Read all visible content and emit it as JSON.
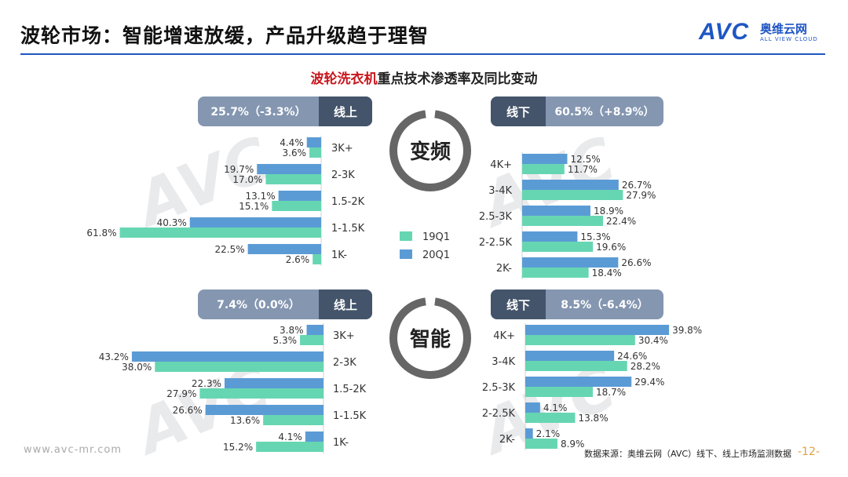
{
  "page": {
    "title": "波轮市场：智能增速放缓，产品升级趋于理智",
    "subtitle_highlight": "波轮洗衣机",
    "subtitle_rest": "重点技术渗透率及同比变动",
    "footer_url": "www.avc-mr.com",
    "footer_source": "数据来源：奥维云网（AVC）线下、线上市场监测数据",
    "page_number": "-12-"
  },
  "logo": {
    "mark": "AVC",
    "cn": "奥维云网",
    "en": "ALL VIEW CLOUD"
  },
  "watermark": "AVC",
  "legend": [
    {
      "name": "19Q1",
      "color": "#66d6b2"
    },
    {
      "name": "20Q1",
      "color": "#5b9bd5"
    }
  ],
  "colors": {
    "series_19": "#66d6b2",
    "series_20": "#5b9bd5",
    "label_pill": "#8496b0",
    "channel_pill": "#44546a",
    "donut": "#666666"
  },
  "sections": {
    "tech_top": "变频",
    "tech_bottom": "智能"
  },
  "chart_data": [
    {
      "type": "bar",
      "title": "变频 线上",
      "channel": "线上",
      "summary": "25.7%（-3.3%）",
      "categories": [
        "3K+",
        "2-3K",
        "1.5-2K",
        "1-1.5K",
        "1K-"
      ],
      "series": [
        {
          "name": "20Q1",
          "values": [
            4.4,
            19.7,
            13.1,
            40.3,
            22.5
          ],
          "labels": [
            "4.4%",
            "19.7%",
            "13.1%",
            "40.3%",
            "22.5%"
          ]
        },
        {
          "name": "19Q1",
          "values": [
            3.6,
            17.0,
            15.1,
            61.8,
            2.6
          ],
          "labels": [
            "3.6%",
            "17.0%",
            "15.1%",
            "61.8%",
            "2.6%"
          ]
        }
      ]
    },
    {
      "type": "bar",
      "title": "变频 线下",
      "channel": "线下",
      "summary": "60.5%（+8.9%）",
      "categories": [
        "4K+",
        "3-4K",
        "2.5-3K",
        "2-2.5K",
        "2K-"
      ],
      "series": [
        {
          "name": "20Q1",
          "values": [
            12.5,
            26.7,
            18.9,
            15.3,
            26.6
          ],
          "labels": [
            "12.5%",
            "26.7%",
            "18.9%",
            "15.3%",
            "26.6%"
          ]
        },
        {
          "name": "19Q1",
          "values": [
            11.7,
            27.9,
            22.4,
            19.6,
            18.4
          ],
          "labels": [
            "11.7%",
            "27.9%",
            "22.4%",
            "19.6%",
            "18.4%"
          ]
        }
      ]
    },
    {
      "type": "bar",
      "title": "智能 线上",
      "channel": "线上",
      "summary": "7.4%（0.0%）",
      "categories": [
        "3K+",
        "2-3K",
        "1.5-2K",
        "1-1.5K",
        "1K-"
      ],
      "series": [
        {
          "name": "20Q1",
          "values": [
            3.8,
            43.2,
            22.3,
            26.6,
            4.1
          ],
          "labels": [
            "3.8%",
            "43.2%",
            "22.3%",
            "26.6%",
            "4.1%"
          ]
        },
        {
          "name": "19Q1",
          "values": [
            5.3,
            38.0,
            27.9,
            13.6,
            15.2
          ],
          "labels": [
            "5.3%",
            "38.0%",
            "27.9%",
            "13.6%",
            "15.2%"
          ]
        }
      ]
    },
    {
      "type": "bar",
      "title": "智能 线下",
      "channel": "线下",
      "summary": "8.5%（-6.4%）",
      "categories": [
        "4K+",
        "3-4K",
        "2.5-3K",
        "2-2.5K",
        "2K-"
      ],
      "series": [
        {
          "name": "20Q1",
          "values": [
            39.8,
            24.6,
            29.4,
            4.1,
            2.1
          ],
          "labels": [
            "39.8%",
            "24.6%",
            "29.4%",
            "4.1%",
            "2.1%"
          ]
        },
        {
          "name": "19Q1",
          "values": [
            30.4,
            28.2,
            18.7,
            13.8,
            8.9
          ],
          "labels": [
            "30.4%",
            "28.2%",
            "18.7%",
            "13.8%",
            "8.9%"
          ]
        }
      ]
    }
  ]
}
